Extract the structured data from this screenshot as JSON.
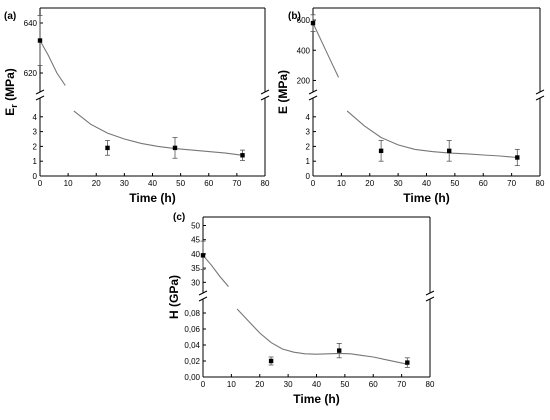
{
  "chart_data": [
    {
      "id": "a",
      "type": "scatter",
      "panel_label": "(a)",
      "xlabel": "Time (h)",
      "ylabel": "E_r (MPa)",
      "ylabel_main": "E",
      "ylabel_sub": "r",
      "ylabel_unit": " (MPa)",
      "xlim": [
        0,
        80
      ],
      "xticks": [
        "0",
        "10",
        "20",
        "30",
        "40",
        "50",
        "60",
        "70",
        "80"
      ],
      "broken_axis": true,
      "lower": {
        "ylim": [
          0,
          5
        ],
        "ticks": [
          "0",
          "1",
          "2",
          "3",
          "4"
        ]
      },
      "upper": {
        "ylim": [
          614,
          646
        ],
        "ticks": [
          "620",
          "640"
        ]
      },
      "points": [
        {
          "x": 0,
          "y": 633,
          "err": 10,
          "segment": "upper"
        },
        {
          "x": 24,
          "y": 1.9,
          "err": 0.5,
          "segment": "lower"
        },
        {
          "x": 48,
          "y": 1.9,
          "err": 0.7,
          "segment": "lower"
        },
        {
          "x": 72,
          "y": 1.4,
          "err": 0.35,
          "segment": "lower"
        }
      ],
      "fit_upper": [
        [
          0,
          633
        ],
        [
          3,
          627
        ],
        [
          6,
          620
        ],
        [
          9,
          615
        ]
      ],
      "fit_lower": [
        [
          12,
          4.4
        ],
        [
          18,
          3.5
        ],
        [
          24,
          2.9
        ],
        [
          30,
          2.5
        ],
        [
          36,
          2.2
        ],
        [
          42,
          2.0
        ],
        [
          48,
          1.85
        ],
        [
          54,
          1.75
        ],
        [
          60,
          1.65
        ],
        [
          66,
          1.55
        ],
        [
          72,
          1.4
        ]
      ]
    },
    {
      "id": "b",
      "type": "scatter",
      "panel_label": "(b)",
      "xlabel": "Time (h)",
      "ylabel": "E (MPa)",
      "ylabel_main": "E (MPa)",
      "ylabel_sub": "",
      "ylabel_unit": "",
      "xlim": [
        0,
        80
      ],
      "xticks": [
        "0",
        "10",
        "20",
        "30",
        "40",
        "50",
        "60",
        "70",
        "80"
      ],
      "broken_axis": true,
      "lower": {
        "ylim": [
          0,
          5
        ],
        "ticks": [
          "0",
          "1",
          "2",
          "3",
          "4"
        ]
      },
      "upper": {
        "ylim": [
          150,
          680
        ],
        "ticks": [
          "200",
          "400",
          "600"
        ]
      },
      "points": [
        {
          "x": 0,
          "y": 580,
          "err": 55,
          "segment": "upper"
        },
        {
          "x": 24,
          "y": 1.7,
          "err": 0.7,
          "segment": "lower"
        },
        {
          "x": 48,
          "y": 1.7,
          "err": 0.7,
          "segment": "lower"
        },
        {
          "x": 72,
          "y": 1.25,
          "err": 0.55,
          "segment": "lower"
        }
      ],
      "fit_upper": [
        [
          0,
          580
        ],
        [
          3,
          460
        ],
        [
          6,
          340
        ],
        [
          9,
          220
        ]
      ],
      "fit_lower": [
        [
          12,
          4.4
        ],
        [
          18,
          3.4
        ],
        [
          24,
          2.6
        ],
        [
          30,
          2.1
        ],
        [
          36,
          1.8
        ],
        [
          42,
          1.65
        ],
        [
          48,
          1.55
        ],
        [
          54,
          1.5
        ],
        [
          60,
          1.42
        ],
        [
          66,
          1.35
        ],
        [
          72,
          1.25
        ]
      ]
    },
    {
      "id": "c",
      "type": "scatter",
      "panel_label": "(c)",
      "xlabel": "Time (h)",
      "ylabel": "H (GPa)",
      "ylabel_main": "H (GPa)",
      "ylabel_sub": "",
      "ylabel_unit": "",
      "xlim": [
        0,
        80
      ],
      "xticks": [
        "0",
        "10",
        "20",
        "30",
        "40",
        "50",
        "60",
        "70",
        "80"
      ],
      "broken_axis": true,
      "lower": {
        "ylim": [
          0,
          0.09
        ],
        "ticks": [
          "0,00",
          "0,02",
          "0,04",
          "0,06",
          "0,08"
        ]
      },
      "upper": {
        "ylim": [
          28,
          53
        ],
        "ticks": [
          "30",
          "35",
          "40",
          "45",
          "50"
        ]
      },
      "points": [
        {
          "x": 0,
          "y": 39.5,
          "err": 5,
          "segment": "upper"
        },
        {
          "x": 24,
          "y": 0.02,
          "err": 0.005,
          "segment": "lower"
        },
        {
          "x": 48,
          "y": 0.033,
          "err": 0.009,
          "segment": "lower"
        },
        {
          "x": 72,
          "y": 0.018,
          "err": 0.006,
          "segment": "lower"
        }
      ],
      "fit_upper": [
        [
          0,
          39.5
        ],
        [
          3,
          36
        ],
        [
          6,
          32
        ],
        [
          9,
          28.5
        ]
      ],
      "fit_lower": [
        [
          12,
          0.085
        ],
        [
          16,
          0.07
        ],
        [
          20,
          0.055
        ],
        [
          24,
          0.043
        ],
        [
          28,
          0.035
        ],
        [
          32,
          0.031
        ],
        [
          36,
          0.029
        ],
        [
          40,
          0.0285
        ],
        [
          44,
          0.029
        ],
        [
          48,
          0.0295
        ],
        [
          52,
          0.029
        ],
        [
          56,
          0.027
        ],
        [
          60,
          0.025
        ],
        [
          64,
          0.022
        ],
        [
          68,
          0.019
        ],
        [
          72,
          0.016
        ]
      ]
    }
  ]
}
